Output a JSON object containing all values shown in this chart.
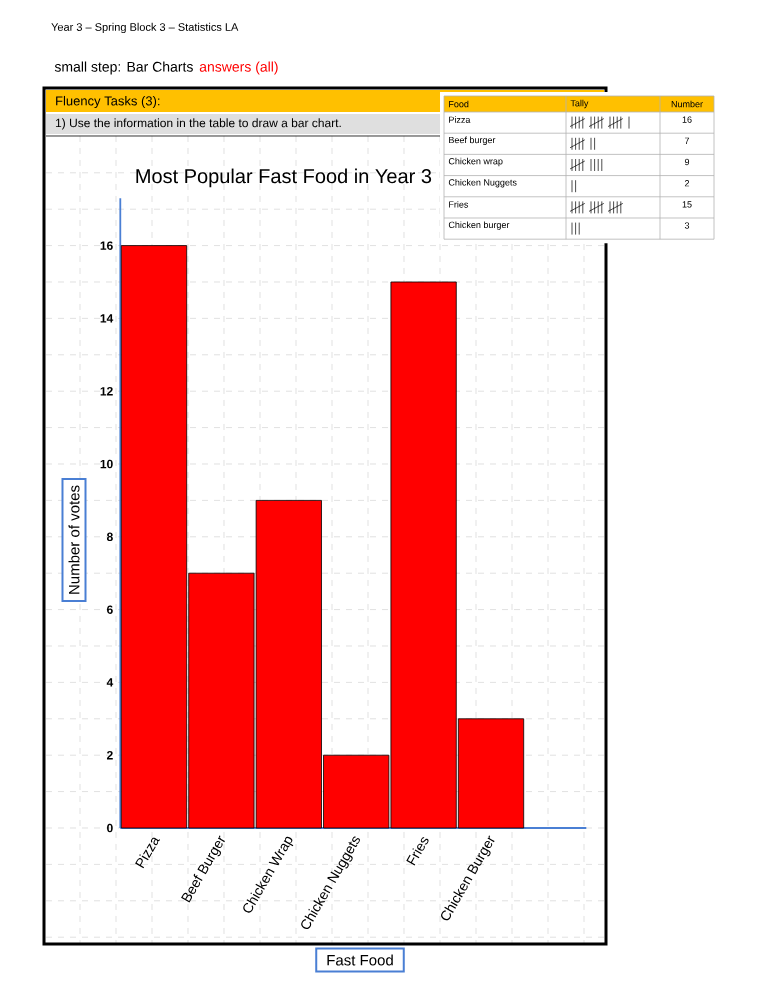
{
  "chart_data": {
    "type": "bar",
    "title": "Most Popular Fast Food in Year 3",
    "xlabel": "Fast Food",
    "ylabel": "Number of votes",
    "categories": [
      "Pizza",
      "Beef Burger",
      "Chicken Wrap",
      "Chicken Nuggets",
      "Fries",
      "Chicken Burger"
    ],
    "values": [
      16,
      7,
      9,
      2,
      15,
      3
    ],
    "color": "#ff0000",
    "grid": true,
    "ylim": [
      0,
      17.3
    ],
    "yticks": [
      0,
      2,
      4,
      6,
      8,
      10,
      12,
      14,
      16
    ],
    "annotations": [
      "Year 3 – Spring Block 3 – Statistics  LA",
      "small step: Bar Charts",
      "answers (all)",
      "Fluency Tasks (3):",
      "1) Use the information in the table to draw a bar chart.",
      "Food",
      "Tally",
      "Number",
      "Pizza",
      "Beef burger",
      "Chicken wrap",
      "Chicken Nuggets",
      "Fries",
      "Chicken burger",
      "16",
      "7",
      "9",
      "2",
      "15",
      "3"
    ]
  }
}
